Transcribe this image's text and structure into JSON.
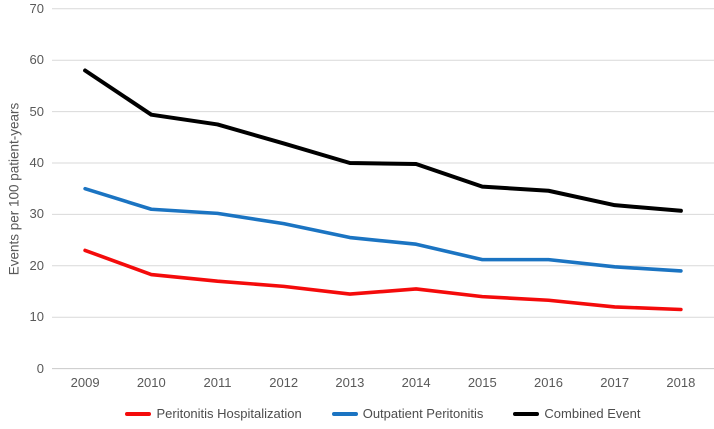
{
  "figure": {
    "background_color": "#ffffff",
    "grid_color": "#d9d9d9",
    "axis_line_color": "#c9c9c9",
    "tick_label_color": "#595959",
    "legend_text_color": "#4d4d4d"
  },
  "chart_data": {
    "type": "line",
    "title": "",
    "xlabel": "",
    "ylabel": "Events per 100 patient-years",
    "categories": [
      "2009",
      "2010",
      "2011",
      "2012",
      "2013",
      "2014",
      "2015",
      "2016",
      "2017",
      "2018"
    ],
    "ylim": [
      0,
      70
    ],
    "yticks": [
      0,
      10,
      20,
      30,
      40,
      50,
      60,
      70
    ],
    "grid": true,
    "legend_position": "bottom",
    "series": [
      {
        "name": "Peritonitis Hospitalization",
        "color": "#f40b0b",
        "values": [
          23,
          18.3,
          17,
          16,
          14.5,
          15.5,
          14,
          13.3,
          12,
          11.5
        ]
      },
      {
        "name": "Outpatient Peritonitis",
        "color": "#1b74c2",
        "values": [
          35,
          31,
          30.2,
          28.2,
          25.5,
          24.2,
          21.2,
          21.2,
          19.8,
          19
        ]
      },
      {
        "name": "Combined Event",
        "color": "#000000",
        "values": [
          58,
          49.4,
          47.5,
          43.8,
          40,
          39.8,
          35.4,
          34.6,
          31.8,
          30.7
        ]
      }
    ]
  }
}
